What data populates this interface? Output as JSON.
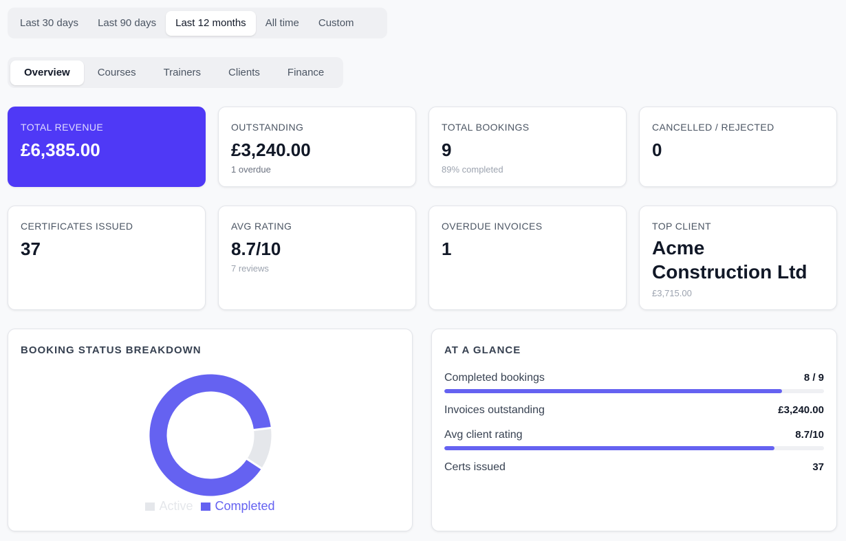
{
  "date_range": {
    "options": [
      "Last 30 days",
      "Last 90 days",
      "Last 12 months",
      "All time",
      "Custom"
    ],
    "selected": "Last 12 months"
  },
  "nav": {
    "tabs": [
      "Overview",
      "Courses",
      "Trainers",
      "Clients",
      "Finance"
    ],
    "selected": "Overview"
  },
  "kpis": {
    "total_revenue": {
      "label": "TOTAL REVENUE",
      "value": "£6,385.00"
    },
    "outstanding": {
      "label": "OUTSTANDING",
      "value": "£3,240.00",
      "sub": "1 overdue"
    },
    "total_bookings": {
      "label": "TOTAL BOOKINGS",
      "value": "9",
      "sub": "89% completed"
    },
    "cancelled": {
      "label": "CANCELLED / REJECTED",
      "value": "0"
    },
    "certificates": {
      "label": "CERTIFICATES ISSUED",
      "value": "37"
    },
    "avg_rating": {
      "label": "AVG RATING",
      "value": "8.7/10",
      "sub": "7 reviews"
    },
    "overdue_invoices": {
      "label": "OVERDUE INVOICES",
      "value": "1"
    },
    "top_client": {
      "label": "TOP CLIENT",
      "value": "Acme Construction Ltd",
      "sub": "£3,715.00"
    }
  },
  "booking_status": {
    "title": "BOOKING STATUS BREAKDOWN",
    "colors": {
      "Active": "#e5e7eb",
      "Completed": "#6562f1"
    }
  },
  "chart_data": {
    "type": "pie",
    "categories": [
      "Active",
      "Completed"
    ],
    "values": [
      1,
      8
    ]
  },
  "glance": {
    "title": "AT A GLANCE",
    "rows": [
      {
        "label": "Completed bookings",
        "value": "8 / 9",
        "progress": 0.889
      },
      {
        "label": "Invoices outstanding",
        "value": "£3,240.00"
      },
      {
        "label": "Avg client rating",
        "value": "8.7/10",
        "progress": 0.87
      },
      {
        "label": "Certs issued",
        "value": "37"
      }
    ]
  },
  "colors": {
    "accent": "#4f39f6",
    "bar": "#6562f1"
  }
}
